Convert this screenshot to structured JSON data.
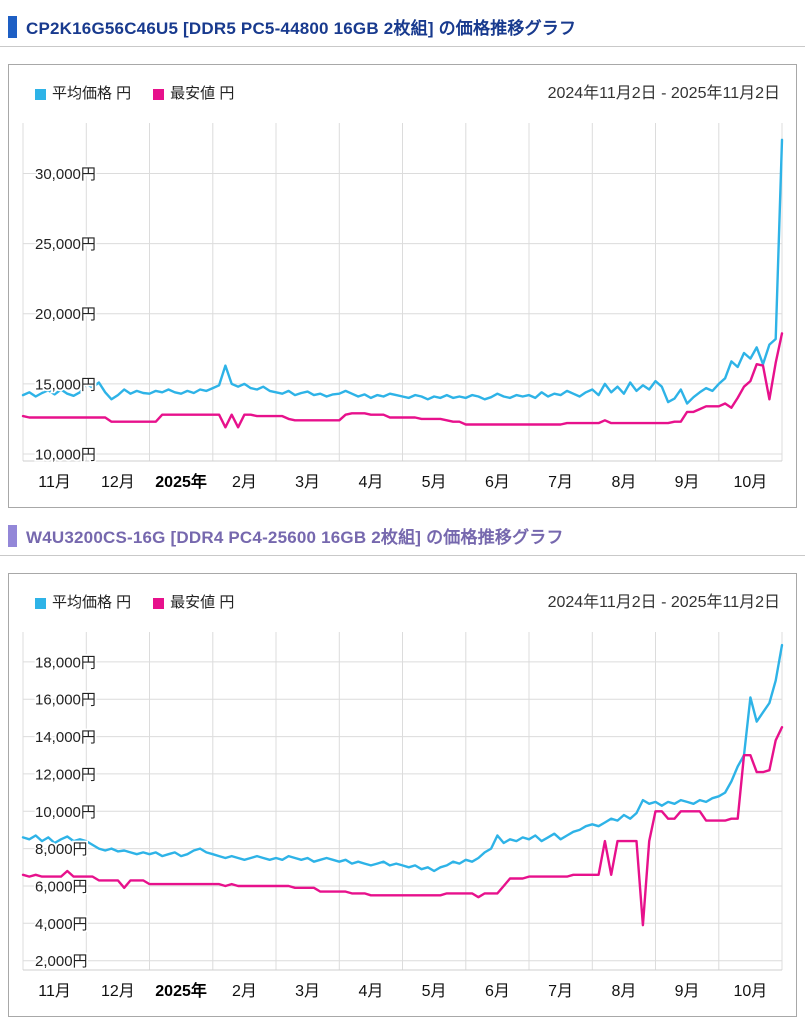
{
  "sections": [
    {
      "title": "CP2K16G56C46U5 [DDR5 PC5-44800 16GB 2枚組] の価格推移グラフ",
      "title_color": "#183a8e",
      "accent_color": "#1e5fc4",
      "legend": [
        {
          "label": "平均価格 円",
          "color": "#2eb3e7"
        },
        {
          "label": "最安値 円",
          "color": "#e7118c"
        }
      ],
      "date_range": "2024年11月2日 - 2025年11月2日"
    },
    {
      "title": "W4U3200CS-16G [DDR4 PC4-25600 16GB 2枚組] の価格推移グラフ",
      "title_color": "#7668ae",
      "accent_color": "#9387d8",
      "legend": [
        {
          "label": "平均価格 円",
          "color": "#2eb3e7"
        },
        {
          "label": "最安値 円",
          "color": "#e7118c"
        }
      ],
      "date_range": "2024年11月2日 - 2025年11月2日"
    }
  ],
  "chart_data": [
    {
      "type": "line",
      "x_tick_labels": [
        "11月",
        "12月",
        "2025年",
        "2月",
        "3月",
        "4月",
        "5月",
        "6月",
        "7月",
        "8月",
        "9月",
        "10月"
      ],
      "x_bold_label": "2025年",
      "x_months": 12,
      "y_ticks": [
        10000,
        15000,
        20000,
        25000,
        30000
      ],
      "y_tick_suffix": "円",
      "ylim": [
        9500,
        33600
      ],
      "grid": true,
      "legend_position": "top-left",
      "series": [
        {
          "name": "平均価格 円",
          "color": "#2eb3e7",
          "values": [
            14200,
            14400,
            14100,
            14350,
            14550,
            14250,
            14600,
            14300,
            14150,
            14400,
            15000,
            14750,
            15100,
            14400,
            13900,
            14200,
            14600,
            14300,
            14500,
            14350,
            14300,
            14500,
            14400,
            14600,
            14400,
            14300,
            14500,
            14350,
            14600,
            14500,
            14700,
            14900,
            16300,
            15000,
            14800,
            15000,
            14700,
            14600,
            14800,
            14500,
            14400,
            14300,
            14500,
            14200,
            14350,
            14450,
            14200,
            14300,
            14100,
            14250,
            14300,
            14500,
            14300,
            14100,
            14250,
            14000,
            14200,
            14100,
            14300,
            14200,
            14100,
            14000,
            14200,
            14100,
            13900,
            14100,
            14000,
            14200,
            14000,
            14100,
            14000,
            14200,
            14100,
            13900,
            14050,
            14300,
            14100,
            14000,
            14200,
            14100,
            14200,
            14000,
            14400,
            14100,
            14300,
            14200,
            14500,
            14300,
            14100,
            14400,
            14600,
            14200,
            15000,
            14400,
            14800,
            14300,
            15100,
            14500,
            14900,
            14600,
            15200,
            14800,
            13700,
            13950,
            14600,
            13600,
            14050,
            14400,
            14700,
            14500,
            15000,
            15400,
            16600,
            16200,
            17200,
            16800,
            17600,
            16400,
            17800,
            18200,
            32400
          ]
        },
        {
          "name": "最安値 円",
          "color": "#e7118c",
          "values": [
            12700,
            12600,
            12600,
            12600,
            12600,
            12600,
            12600,
            12600,
            12600,
            12600,
            12600,
            12600,
            12600,
            12600,
            12300,
            12300,
            12300,
            12300,
            12300,
            12300,
            12300,
            12300,
            12800,
            12800,
            12800,
            12800,
            12800,
            12800,
            12800,
            12800,
            12800,
            12800,
            11900,
            12800,
            11900,
            12800,
            12800,
            12700,
            12700,
            12700,
            12700,
            12700,
            12500,
            12400,
            12400,
            12400,
            12400,
            12400,
            12400,
            12400,
            12400,
            12800,
            12900,
            12900,
            12900,
            12800,
            12800,
            12800,
            12600,
            12600,
            12600,
            12600,
            12600,
            12500,
            12500,
            12500,
            12500,
            12400,
            12300,
            12300,
            12100,
            12100,
            12100,
            12100,
            12100,
            12100,
            12100,
            12100,
            12100,
            12100,
            12100,
            12100,
            12100,
            12100,
            12100,
            12100,
            12200,
            12200,
            12200,
            12200,
            12200,
            12200,
            12400,
            12200,
            12200,
            12200,
            12200,
            12200,
            12200,
            12200,
            12200,
            12200,
            12200,
            12300,
            12300,
            13000,
            13000,
            13200,
            13400,
            13400,
            13400,
            13600,
            13300,
            14000,
            14800,
            15200,
            16400,
            16300,
            13900,
            16500,
            18600
          ]
        }
      ]
    },
    {
      "type": "line",
      "x_tick_labels": [
        "11月",
        "12月",
        "2025年",
        "2月",
        "3月",
        "4月",
        "5月",
        "6月",
        "7月",
        "8月",
        "9月",
        "10月"
      ],
      "x_bold_label": "2025年",
      "x_months": 12,
      "y_ticks": [
        2000,
        4000,
        6000,
        8000,
        10000,
        12000,
        14000,
        16000,
        18000
      ],
      "y_tick_suffix": "円",
      "ylim": [
        1500,
        19600
      ],
      "grid": true,
      "legend_position": "top-left",
      "series": [
        {
          "name": "平均価格 円",
          "color": "#2eb3e7",
          "values": [
            8600,
            8500,
            8700,
            8400,
            8600,
            8300,
            8500,
            8650,
            8400,
            8500,
            8400,
            8200,
            8000,
            7900,
            8000,
            7850,
            7900,
            7800,
            7700,
            7800,
            7700,
            7800,
            7600,
            7700,
            7800,
            7600,
            7700,
            7900,
            8000,
            7800,
            7700,
            7600,
            7500,
            7600,
            7500,
            7400,
            7500,
            7600,
            7500,
            7400,
            7500,
            7400,
            7600,
            7500,
            7400,
            7500,
            7300,
            7400,
            7500,
            7400,
            7300,
            7400,
            7200,
            7300,
            7200,
            7100,
            7200,
            7300,
            7100,
            7200,
            7100,
            7000,
            7100,
            6900,
            7000,
            6800,
            7000,
            7100,
            7300,
            7200,
            7400,
            7300,
            7500,
            7800,
            8000,
            8700,
            8300,
            8500,
            8400,
            8600,
            8500,
            8700,
            8400,
            8600,
            8800,
            8500,
            8700,
            8900,
            9000,
            9200,
            9300,
            9200,
            9400,
            9600,
            9500,
            9800,
            9600,
            9900,
            10600,
            10400,
            10500,
            10300,
            10500,
            10400,
            10600,
            10500,
            10400,
            10600,
            10500,
            10700,
            10800,
            11000,
            11600,
            12400,
            13000,
            16100,
            14800,
            15300,
            15800,
            17000,
            18900
          ]
        },
        {
          "name": "最安値 円",
          "color": "#e7118c",
          "values": [
            6600,
            6500,
            6600,
            6500,
            6500,
            6500,
            6500,
            6800,
            6500,
            6500,
            6500,
            6500,
            6300,
            6300,
            6300,
            6300,
            5900,
            6300,
            6300,
            6300,
            6100,
            6100,
            6100,
            6100,
            6100,
            6100,
            6100,
            6100,
            6100,
            6100,
            6100,
            6100,
            6000,
            6100,
            6000,
            6000,
            6000,
            6000,
            6000,
            6000,
            6000,
            6000,
            6000,
            5900,
            5900,
            5900,
            5900,
            5700,
            5700,
            5700,
            5700,
            5700,
            5600,
            5600,
            5600,
            5500,
            5500,
            5500,
            5500,
            5500,
            5500,
            5500,
            5500,
            5500,
            5500,
            5500,
            5500,
            5600,
            5600,
            5600,
            5600,
            5600,
            5400,
            5600,
            5600,
            5600,
            6000,
            6400,
            6400,
            6400,
            6500,
            6500,
            6500,
            6500,
            6500,
            6500,
            6500,
            6600,
            6600,
            6600,
            6600,
            6600,
            8400,
            6600,
            8400,
            8400,
            8400,
            8400,
            3900,
            8400,
            10000,
            10000,
            9600,
            9600,
            10000,
            10000,
            10000,
            10000,
            9500,
            9500,
            9500,
            9500,
            9600,
            9600,
            13000,
            13000,
            12100,
            12100,
            12200,
            13800,
            14500
          ]
        }
      ]
    }
  ]
}
